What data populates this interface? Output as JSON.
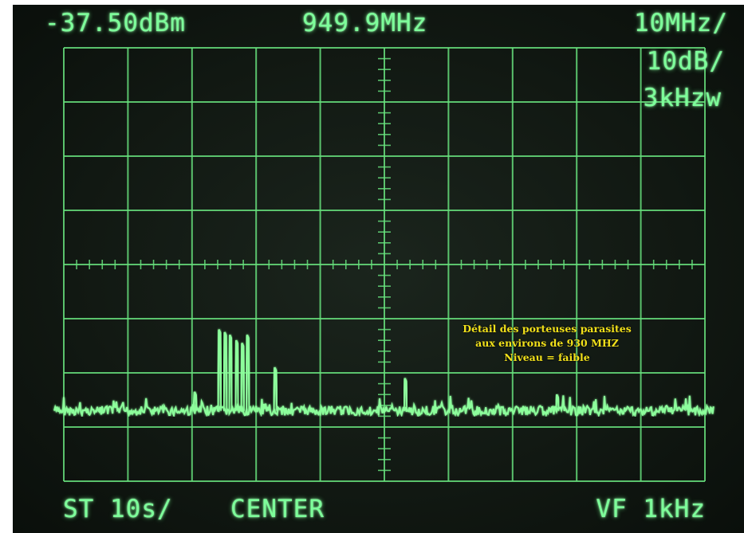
{
  "display": {
    "reference_level": "-37.50dBm",
    "center_frequency": "949.9MHz",
    "span_per_division": "10MHz/",
    "scale_per_division": "10dB/",
    "resolution_bandwidth": "3kHzw",
    "sweep_time": "ST 10s/",
    "mode": "CENTER",
    "video_filter": "VF 1kHz"
  },
  "annotation": {
    "line1": "Détail des porteuses parasites",
    "line2": "aux environs de 930 MHZ",
    "line3": "Niveau = faible"
  },
  "colors": {
    "trace": "#8dff9c",
    "grid": "#67e07c",
    "annotation": "#f1e01a"
  },
  "chart_data": {
    "type": "line",
    "divisions_x": 10,
    "divisions_y": 8,
    "noise_floor_div_from_top": 6.7,
    "peaks": [
      {
        "x_div": 2.43,
        "height_div": 1.5
      },
      {
        "x_div": 2.52,
        "height_div": 1.45
      },
      {
        "x_div": 2.6,
        "height_div": 1.4
      },
      {
        "x_div": 2.7,
        "height_div": 1.3
      },
      {
        "x_div": 2.79,
        "height_div": 1.25
      },
      {
        "x_div": 2.87,
        "height_div": 1.4
      },
      {
        "x_div": 3.3,
        "height_div": 0.8
      },
      {
        "x_div": 5.33,
        "height_div": 0.6
      },
      {
        "x_div": 2.05,
        "height_div": 0.35
      },
      {
        "x_div": 7.7,
        "height_div": 0.3
      }
    ]
  }
}
